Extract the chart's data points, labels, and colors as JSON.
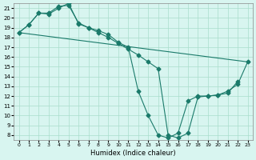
{
  "xlabel": "Humidex (Indice chaleur)",
  "ylabel": "",
  "bg_color": "#d8f5f0",
  "grid_color": "#aaddcc",
  "line_color": "#1a7a6a",
  "xlim": [
    -0.5,
    23.5
  ],
  "ylim": [
    7.5,
    21.5
  ],
  "xticks": [
    0,
    1,
    2,
    3,
    4,
    5,
    6,
    7,
    8,
    9,
    10,
    11,
    12,
    13,
    14,
    15,
    16,
    17,
    18,
    19,
    20,
    21,
    22,
    23
  ],
  "yticks": [
    8,
    9,
    10,
    11,
    12,
    13,
    14,
    15,
    16,
    17,
    18,
    19,
    20,
    21
  ],
  "line1_x": [
    0,
    1,
    2,
    3,
    4,
    5,
    6,
    7,
    8,
    9,
    10,
    11,
    12,
    13,
    14,
    15,
    16,
    17,
    18,
    19,
    20,
    21,
    22,
    23
  ],
  "line1_y": [
    18.5,
    19.3,
    20.5,
    20.4,
    21.0,
    21.5,
    19.4,
    19.0,
    18.5,
    18.0,
    17.4,
    16.8,
    16.2,
    15.5,
    14.8,
    8.0,
    7.7,
    8.2,
    11.9,
    12.0,
    12.1,
    12.5,
    13.2,
    15.5
  ],
  "line2_x": [
    0,
    1,
    2,
    3,
    4,
    5,
    6,
    7,
    8,
    9,
    10,
    11,
    12,
    13,
    14,
    15,
    16,
    17,
    18,
    19,
    20,
    21,
    22
  ],
  "line2_y": [
    18.5,
    19.3,
    20.5,
    20.5,
    21.2,
    21.3,
    19.5,
    19.0,
    18.7,
    18.3,
    17.5,
    17.0,
    12.5,
    10.0,
    8.0,
    7.7,
    8.2,
    11.5,
    12.0,
    12.0,
    12.1,
    12.3,
    13.5
  ],
  "line3_x": [
    0,
    23
  ],
  "line3_y": [
    18.5,
    15.5
  ]
}
